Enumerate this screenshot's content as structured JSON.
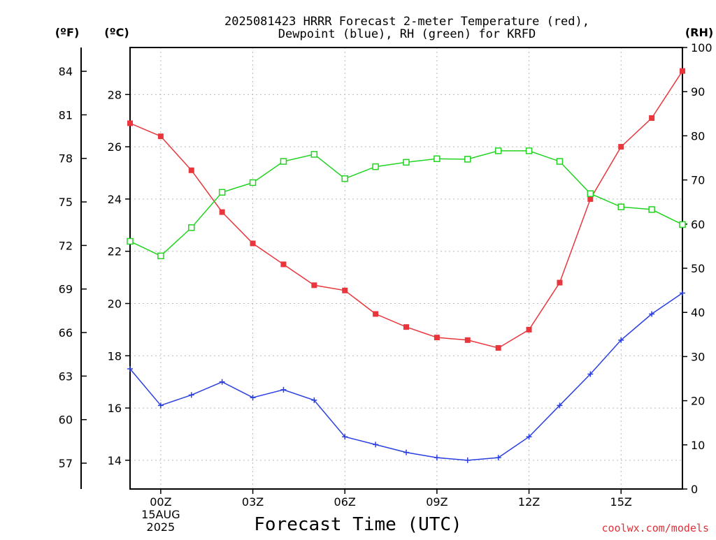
{
  "chart_data": {
    "type": "line",
    "title": "2025081423 HRRR Forecast 2-meter Temperature (red),",
    "subtitle": "Dewpoint (blue), RH (green) for KRFD",
    "xlabel": "Forecast Time (UTC)",
    "credit": "coolwx.com/models",
    "units": {
      "f": "(ºF)",
      "c": "(ºC)",
      "rh": "(RH)"
    },
    "x": [
      -1,
      0,
      1,
      2,
      3,
      4,
      5,
      6,
      7,
      8,
      9,
      10,
      11,
      12,
      13,
      14,
      15,
      16,
      17
    ],
    "xlim": [
      -1,
      17
    ],
    "x_ticks": [
      {
        "x": 0,
        "label": "00Z",
        "sub1": "15AUG",
        "sub2": "2025"
      },
      {
        "x": 3,
        "label": "03Z"
      },
      {
        "x": 6,
        "label": "06Z"
      },
      {
        "x": 9,
        "label": "09Z"
      },
      {
        "x": 12,
        "label": "12Z"
      },
      {
        "x": 15,
        "label": "15Z"
      }
    ],
    "ylim_c": [
      12.9,
      29.8
    ],
    "ylim_rh": [
      0,
      100
    ],
    "c_ticks": [
      "14",
      "16",
      "18",
      "20",
      "22",
      "24",
      "26",
      "28"
    ],
    "f_ticks": [
      "57",
      "60",
      "63",
      "66",
      "69",
      "72",
      "75",
      "78",
      "81",
      "84"
    ],
    "rh_ticks": [
      "0",
      "10",
      "20",
      "30",
      "40",
      "50",
      "60",
      "70",
      "80",
      "90",
      "100"
    ],
    "grid": true,
    "colors": {
      "temperature": "#e8363c",
      "dewpoint": "#2a3fe0",
      "rh": "#22d422"
    },
    "series": [
      {
        "key": "temperature",
        "axis": "c",
        "marker": "square-filled",
        "values": [
          26.9,
          26.4,
          25.1,
          23.5,
          22.3,
          21.5,
          20.7,
          20.5,
          19.6,
          19.1,
          18.7,
          18.6,
          18.3,
          19.0,
          20.8,
          24.0,
          26.0,
          27.1,
          28.9
        ]
      },
      {
        "key": "dewpoint",
        "axis": "c",
        "marker": "plus",
        "values": [
          17.5,
          16.1,
          16.5,
          17.0,
          16.4,
          16.7,
          16.3,
          14.9,
          14.6,
          14.3,
          14.1,
          14.0,
          14.1,
          14.9,
          16.1,
          17.3,
          18.6,
          19.6,
          20.4
        ]
      },
      {
        "key": "rh",
        "axis": "rh",
        "marker": "square-open",
        "values": [
          56.1,
          52.8,
          59.2,
          67.2,
          69.4,
          74.2,
          75.8,
          70.3,
          73.0,
          74.0,
          74.8,
          74.7,
          76.6,
          76.6,
          74.2,
          66.9,
          63.9,
          63.3,
          59.9
        ]
      }
    ]
  }
}
